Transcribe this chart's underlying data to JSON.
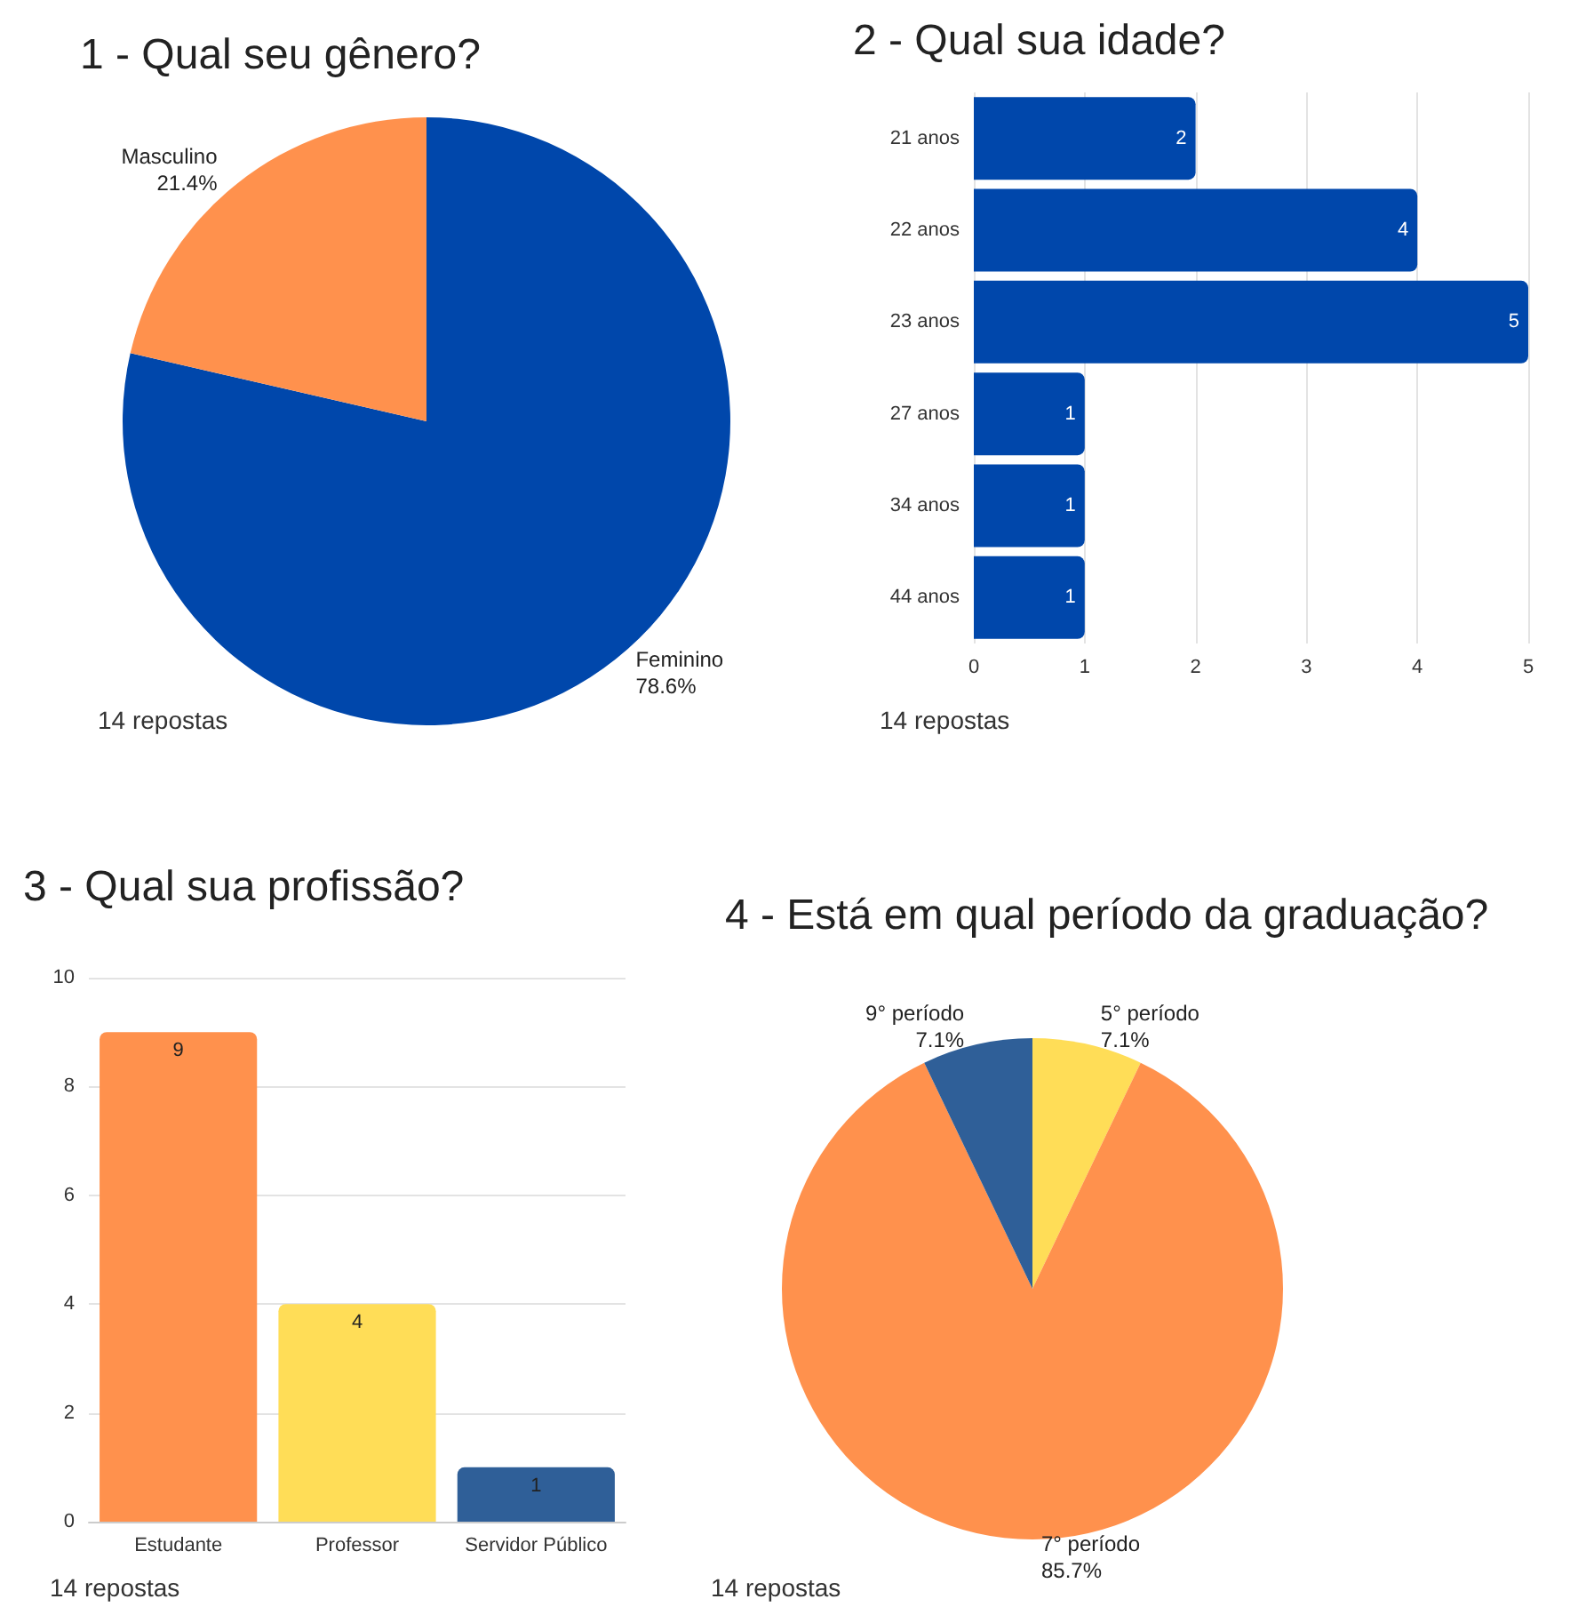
{
  "chart_data": [
    {
      "type": "pie",
      "title": "1 - Qual seu gênero?",
      "categories": [
        "Feminino",
        "Masculino"
      ],
      "values": [
        78.6,
        21.4
      ],
      "colors": [
        "#0047ab",
        "#ff914d"
      ],
      "value_labels": [
        "78.6%",
        "21.4%"
      ],
      "annotations": [
        "14 repostas"
      ]
    },
    {
      "type": "bar",
      "orientation": "horizontal",
      "title": "2 - Qual sua idade?",
      "categories": [
        "21 anos",
        "22 anos",
        "23 anos",
        "27 anos",
        "34 anos",
        "44 anos"
      ],
      "values": [
        2,
        4,
        5,
        1,
        1,
        1
      ],
      "color": "#0047ab",
      "xlim": [
        0,
        5
      ],
      "xticks": [
        0,
        1,
        2,
        3,
        4,
        5
      ],
      "grid": "x",
      "data_labels": true,
      "annotations": [
        "14 repostas"
      ]
    },
    {
      "type": "bar",
      "title": "3 - Qual sua profissão?",
      "categories": [
        "Estudante",
        "Professor",
        "Servidor Público"
      ],
      "values": [
        9,
        4,
        1
      ],
      "colors": [
        "#ff914d",
        "#ffdd57",
        "#2f5f98"
      ],
      "ylim": [
        0,
        10
      ],
      "yticks": [
        0,
        2,
        4,
        6,
        8,
        10
      ],
      "grid": "y",
      "data_labels": true,
      "annotations": [
        "14 repostas"
      ]
    },
    {
      "type": "pie",
      "title": "4 - Está em qual período da graduação?",
      "categories": [
        "5° período",
        "7° período",
        "9° período"
      ],
      "values": [
        7.1,
        85.7,
        7.1
      ],
      "colors": [
        "#ffdd57",
        "#ff914d",
        "#2f5f98"
      ],
      "value_labels": [
        "7.1%",
        "85.7%",
        "7.1%"
      ],
      "annotations": [
        "14 repostas"
      ]
    }
  ]
}
